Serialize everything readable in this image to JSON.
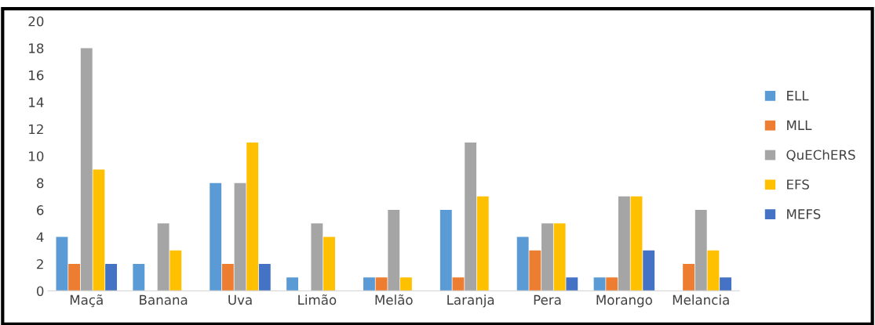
{
  "chart_data": {
    "type": "bar",
    "categories": [
      "Maçã",
      "Banana",
      "Uva",
      "Limão",
      "Melão",
      "Laranja",
      "Pera",
      "Morango",
      "Melancia"
    ],
    "series": [
      {
        "name": "ELL",
        "color": "#5b9bd5",
        "values": [
          4,
          2,
          8,
          1,
          1,
          6,
          4,
          1,
          0
        ]
      },
      {
        "name": "MLL",
        "color": "#ed7d31",
        "values": [
          2,
          0,
          2,
          0,
          1,
          1,
          3,
          1,
          2
        ]
      },
      {
        "name": "QuEChERS",
        "color": "#a5a5a5",
        "values": [
          18,
          5,
          8,
          5,
          6,
          11,
          5,
          7,
          6
        ]
      },
      {
        "name": "EFS",
        "color": "#ffc000",
        "values": [
          9,
          3,
          11,
          4,
          1,
          7,
          5,
          7,
          3
        ]
      },
      {
        "name": "MEFS",
        "color": "#4472c4",
        "values": [
          2,
          0,
          2,
          0,
          0,
          0,
          1,
          3,
          1
        ]
      }
    ],
    "ylim": [
      0,
      20
    ],
    "yticks": [
      0,
      2,
      4,
      6,
      8,
      10,
      12,
      14,
      16,
      18,
      20
    ],
    "grid": false,
    "legend": "right"
  }
}
